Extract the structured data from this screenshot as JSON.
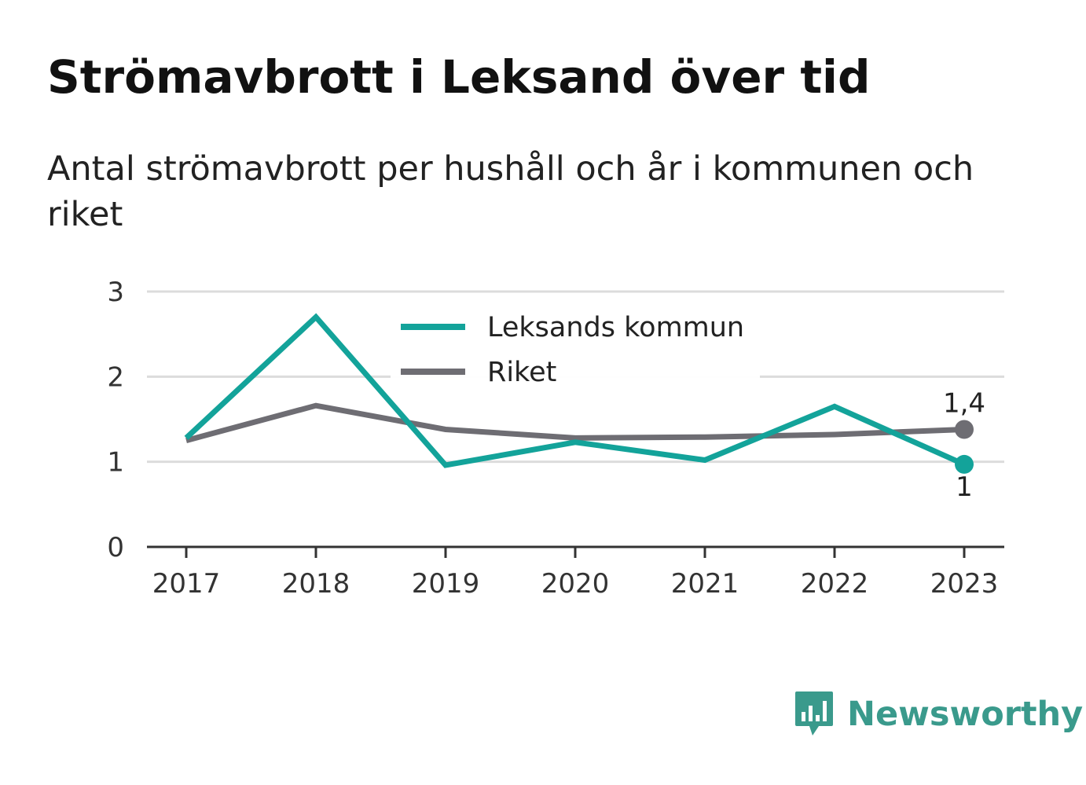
{
  "title": "Strömavbrott i Leksand över tid",
  "subtitle": "Antal strömavbrott per hushåll och år i kommunen och riket",
  "brand": {
    "name": "Newsworthy",
    "icon": "bar-chart-speech-bubble-icon",
    "color": "#3a9a8c"
  },
  "chart_data": {
    "type": "line",
    "x": [
      "2017",
      "2018",
      "2019",
      "2020",
      "2021",
      "2022",
      "2023"
    ],
    "ylim": [
      0,
      3
    ],
    "yticks": [
      "0",
      "1",
      "2",
      "3"
    ],
    "grid": true,
    "legend_placement": "top-center",
    "series": [
      {
        "name": "Leksands kommun",
        "color": "#13a39a",
        "values": [
          1.28,
          2.7,
          0.96,
          1.23,
          1.02,
          1.65,
          0.97
        ],
        "end_label": "1"
      },
      {
        "name": "Riket",
        "color": "#6e6d73",
        "values": [
          1.25,
          1.66,
          1.38,
          1.28,
          1.29,
          1.32,
          1.38
        ],
        "end_label": "1,4"
      }
    ]
  }
}
